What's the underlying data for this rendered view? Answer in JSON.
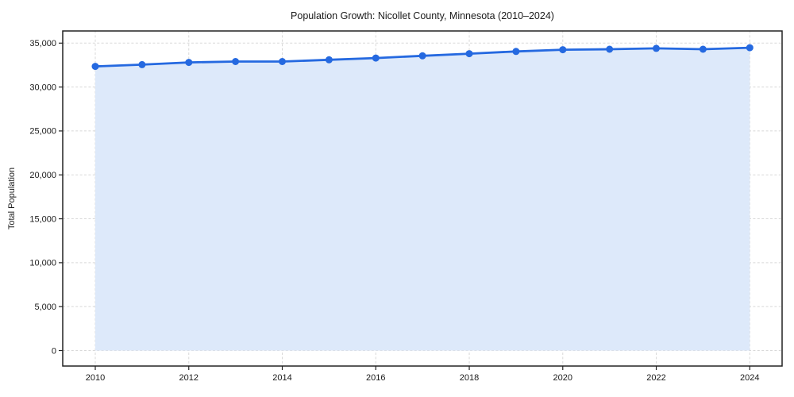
{
  "chart_data": {
    "type": "line",
    "title": "Population Growth: Nicollet County, Minnesota (2010–2024)",
    "ylabel": "Total Population",
    "x": [
      2010,
      2011,
      2012,
      2013,
      2014,
      2015,
      2016,
      2017,
      2018,
      2019,
      2020,
      2021,
      2022,
      2023,
      2024
    ],
    "values": [
      32350,
      32550,
      32800,
      32900,
      32900,
      33100,
      33300,
      33550,
      33800,
      34050,
      34250,
      34300,
      34400,
      34300,
      34480
    ],
    "xticks": [
      2010,
      2012,
      2014,
      2016,
      2018,
      2020,
      2022,
      2024
    ],
    "yticks": [
      0,
      5000,
      10000,
      15000,
      20000,
      25000,
      30000,
      35000
    ],
    "ylim": [
      0,
      35000
    ],
    "grid": true,
    "legend": "none",
    "marker": "circle",
    "line_color": "#2569e0",
    "fill_color": "#dde9fa",
    "grid_color": "#d8d8d8",
    "spine_color": "#222222",
    "background_color": "#ffffff"
  }
}
